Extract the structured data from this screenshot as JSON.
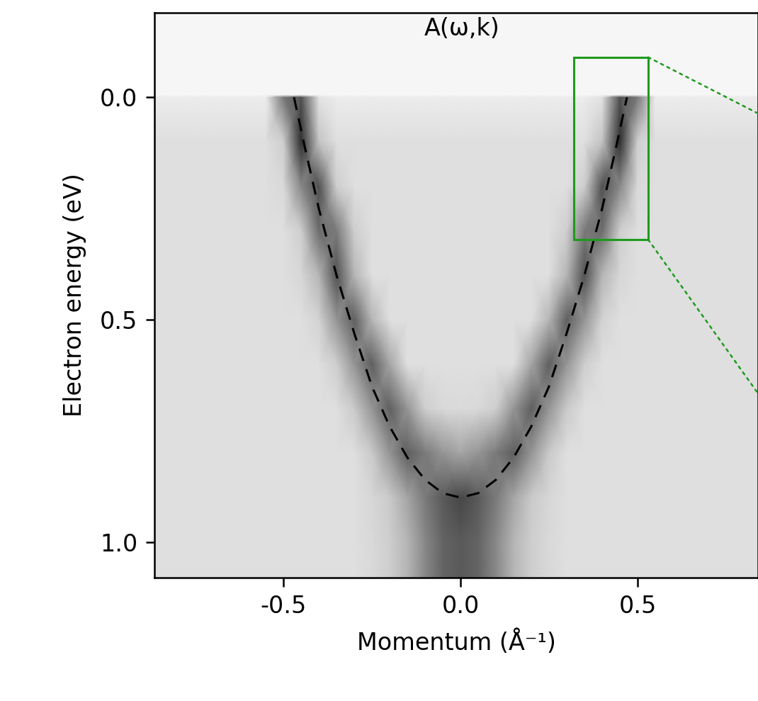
{
  "chart_data": {
    "type": "heatmap",
    "annotation": "A(ω,k)",
    "x_label": "Momentum (Å⁻¹)",
    "y_label": "Electron energy (eV)",
    "xlim": [
      -0.864,
      0.84
    ],
    "ylim": [
      1.08,
      -0.19
    ],
    "xticks": [
      {
        "value": -0.5,
        "label": "-0.5"
      },
      {
        "value": 0,
        "label": "0.0"
      },
      {
        "value": 0.5,
        "label": "0.5"
      }
    ],
    "yticks": [
      {
        "value": 0,
        "label": "0.0"
      },
      {
        "value": 0.5,
        "label": "0.5"
      },
      {
        "value": 1,
        "label": "1.0"
      }
    ],
    "heatmap": {
      "color_range": [
        0,
        1
      ],
      "x": [
        -0.9,
        -0.8,
        -0.75,
        -0.7,
        -0.65,
        -0.6,
        -0.55,
        -0.5,
        -0.45,
        -0.4,
        -0.35,
        -0.3,
        -0.25,
        -0.2,
        -0.15,
        -0.1,
        -0.05,
        0,
        0.05,
        0.1,
        0.15,
        0.2,
        0.25,
        0.3,
        0.35,
        0.4,
        0.45,
        0.5,
        0.55,
        0.6,
        0.65,
        0.7,
        0.75,
        0.8,
        0.9
      ],
      "y": [
        -0.2,
        -0.005,
        0,
        0.1,
        0.2,
        0.3,
        0.4,
        0.5,
        0.6,
        0.7,
        0.8,
        0.9,
        1.0,
        1.1
      ],
      "cells": [
        [
          0.08,
          0.08,
          0.08,
          0.08,
          0.08,
          0.08,
          0.08,
          0.08,
          0.08,
          0.08,
          0.08,
          0.08,
          0.08,
          0.08,
          0.08,
          0.08,
          0.08,
          0.08,
          0.08,
          0.08,
          0.08,
          0.08,
          0.08,
          0.08,
          0.08,
          0.08,
          0.08,
          0.08,
          0.08,
          0.08,
          0.08,
          0.08,
          0.08,
          0.08,
          0.08
        ],
        [
          0.08,
          0.08,
          0.08,
          0.08,
          0.08,
          0.08,
          0.08,
          0.08,
          0.08,
          0.08,
          0.08,
          0.08,
          0.08,
          0.08,
          0.08,
          0.08,
          0.08,
          0.08,
          0.08,
          0.08,
          0.08,
          0.08,
          0.08,
          0.08,
          0.08,
          0.08,
          0.08,
          0.08,
          0.08,
          0.08,
          0.08,
          0.08,
          0.08,
          0.08,
          0.08
        ],
        [
          0.15,
          0.15,
          0.15,
          0.15,
          0.15,
          0.15,
          0.15,
          0.6,
          0.75,
          0.2,
          0.15,
          0.15,
          0.15,
          0.15,
          0.15,
          0.15,
          0.15,
          0.15,
          0.15,
          0.15,
          0.15,
          0.15,
          0.15,
          0.15,
          0.15,
          0.2,
          0.75,
          0.6,
          0.15,
          0.15,
          0.15,
          0.15,
          0.15,
          0.15,
          0.15
        ],
        [
          0.22,
          0.22,
          0.22,
          0.22,
          0.22,
          0.22,
          0.22,
          0.3,
          0.85,
          0.35,
          0.22,
          0.22,
          0.22,
          0.22,
          0.22,
          0.22,
          0.22,
          0.22,
          0.22,
          0.22,
          0.22,
          0.22,
          0.22,
          0.22,
          0.22,
          0.35,
          0.85,
          0.3,
          0.22,
          0.22,
          0.22,
          0.22,
          0.22,
          0.22,
          0.22
        ],
        [
          0.22,
          0.22,
          0.22,
          0.22,
          0.22,
          0.22,
          0.22,
          0.25,
          0.55,
          0.75,
          0.3,
          0.22,
          0.22,
          0.22,
          0.22,
          0.22,
          0.22,
          0.22,
          0.22,
          0.22,
          0.22,
          0.22,
          0.22,
          0.22,
          0.3,
          0.75,
          0.55,
          0.25,
          0.22,
          0.22,
          0.22,
          0.22,
          0.22,
          0.22,
          0.22
        ],
        [
          0.22,
          0.22,
          0.22,
          0.22,
          0.22,
          0.22,
          0.22,
          0.22,
          0.3,
          0.65,
          0.6,
          0.3,
          0.22,
          0.22,
          0.22,
          0.22,
          0.22,
          0.22,
          0.22,
          0.22,
          0.22,
          0.22,
          0.22,
          0.3,
          0.6,
          0.65,
          0.3,
          0.22,
          0.22,
          0.22,
          0.22,
          0.22,
          0.22,
          0.22,
          0.22
        ],
        [
          0.22,
          0.22,
          0.22,
          0.22,
          0.22,
          0.22,
          0.22,
          0.22,
          0.26,
          0.4,
          0.75,
          0.4,
          0.22,
          0.22,
          0.22,
          0.22,
          0.22,
          0.22,
          0.22,
          0.22,
          0.22,
          0.22,
          0.22,
          0.4,
          0.75,
          0.4,
          0.26,
          0.22,
          0.22,
          0.22,
          0.22,
          0.22,
          0.22,
          0.22,
          0.22
        ],
        [
          0.22,
          0.22,
          0.22,
          0.22,
          0.22,
          0.22,
          0.22,
          0.22,
          0.22,
          0.28,
          0.5,
          0.7,
          0.4,
          0.22,
          0.22,
          0.22,
          0.22,
          0.22,
          0.22,
          0.22,
          0.22,
          0.22,
          0.4,
          0.7,
          0.5,
          0.28,
          0.22,
          0.22,
          0.22,
          0.22,
          0.22,
          0.22,
          0.22,
          0.22,
          0.22
        ],
        [
          0.22,
          0.22,
          0.22,
          0.22,
          0.22,
          0.22,
          0.22,
          0.22,
          0.22,
          0.22,
          0.3,
          0.5,
          0.7,
          0.45,
          0.22,
          0.22,
          0.22,
          0.22,
          0.22,
          0.22,
          0.22,
          0.45,
          0.7,
          0.5,
          0.3,
          0.22,
          0.22,
          0.22,
          0.22,
          0.22,
          0.22,
          0.22,
          0.22,
          0.22,
          0.22
        ],
        [
          0.22,
          0.22,
          0.22,
          0.22,
          0.22,
          0.22,
          0.22,
          0.22,
          0.22,
          0.22,
          0.22,
          0.32,
          0.5,
          0.7,
          0.5,
          0.3,
          0.25,
          0.24,
          0.25,
          0.3,
          0.5,
          0.7,
          0.5,
          0.32,
          0.22,
          0.22,
          0.22,
          0.22,
          0.22,
          0.22,
          0.22,
          0.22,
          0.22,
          0.22,
          0.22
        ],
        [
          0.22,
          0.22,
          0.22,
          0.22,
          0.22,
          0.22,
          0.22,
          0.22,
          0.22,
          0.22,
          0.22,
          0.22,
          0.32,
          0.5,
          0.7,
          0.6,
          0.5,
          0.45,
          0.5,
          0.6,
          0.7,
          0.5,
          0.32,
          0.22,
          0.22,
          0.22,
          0.22,
          0.22,
          0.22,
          0.22,
          0.22,
          0.22,
          0.22,
          0.22,
          0.22
        ],
        [
          0.22,
          0.22,
          0.22,
          0.22,
          0.22,
          0.22,
          0.22,
          0.22,
          0.22,
          0.22,
          0.22,
          0.22,
          0.26,
          0.32,
          0.45,
          0.6,
          0.72,
          0.78,
          0.72,
          0.6,
          0.45,
          0.32,
          0.26,
          0.22,
          0.22,
          0.22,
          0.22,
          0.22,
          0.22,
          0.22,
          0.22,
          0.22,
          0.22,
          0.22,
          0.22
        ],
        [
          0.22,
          0.22,
          0.22,
          0.22,
          0.22,
          0.22,
          0.22,
          0.22,
          0.22,
          0.22,
          0.22,
          0.22,
          0.25,
          0.3,
          0.4,
          0.55,
          0.68,
          0.72,
          0.68,
          0.55,
          0.4,
          0.3,
          0.25,
          0.22,
          0.22,
          0.22,
          0.22,
          0.22,
          0.22,
          0.22,
          0.22,
          0.22,
          0.22,
          0.22,
          0.22
        ],
        [
          0.22,
          0.22,
          0.22,
          0.22,
          0.22,
          0.22,
          0.22,
          0.22,
          0.22,
          0.22,
          0.22,
          0.22,
          0.25,
          0.3,
          0.4,
          0.55,
          0.68,
          0.72,
          0.68,
          0.55,
          0.4,
          0.3,
          0.25,
          0.22,
          0.22,
          0.22,
          0.22,
          0.22,
          0.22,
          0.22,
          0.22,
          0.22,
          0.22,
          0.22,
          0.22
        ]
      ]
    },
    "band": {
      "x": [
        -0.47,
        -0.44,
        -0.4,
        -0.35,
        -0.3,
        -0.25,
        -0.2,
        -0.15,
        -0.1,
        -0.05,
        0,
        0.05,
        0.1,
        0.15,
        0.2,
        0.25,
        0.3,
        0.35,
        0.4,
        0.44,
        0.47
      ],
      "values": [
        0,
        0.11,
        0.25,
        0.4,
        0.53,
        0.65,
        0.74,
        0.81,
        0.86,
        0.89,
        0.9,
        0.89,
        0.86,
        0.81,
        0.74,
        0.65,
        0.53,
        0.4,
        0.25,
        0.11,
        0
      ],
      "color": "#000000",
      "line_style": "dashed"
    },
    "inset_region": {
      "x": [
        0.32,
        0.53
      ],
      "y": [
        -0.09,
        0.32
      ],
      "color": "#1e9a1e"
    }
  }
}
